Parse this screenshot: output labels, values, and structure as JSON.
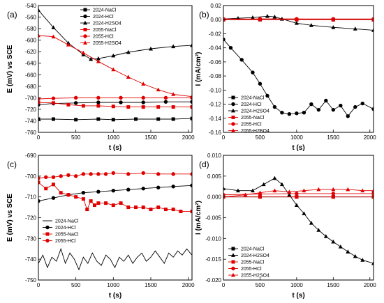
{
  "chart_data": [
    {
      "panel": "(a)",
      "type": "line",
      "xlabel": "t (s)",
      "ylabel": "E (mV) vs SCE",
      "xlim": [
        0,
        2050
      ],
      "ylim": [
        -760,
        -540
      ],
      "xticks": [
        0,
        500,
        1000,
        1500,
        2000
      ],
      "yticks": [
        -540,
        -560,
        -580,
        -600,
        -620,
        -640,
        -660,
        -680,
        -700,
        -720,
        -740,
        -760
      ],
      "legend_position": "top-right",
      "series": [
        {
          "name": "2024-NaCl",
          "color": "#000000",
          "marker": "square",
          "x": [
            0,
            200,
            500,
            800,
            1000,
            1300,
            1600,
            1800,
            2050
          ],
          "y": [
            -737,
            -737,
            -738,
            -737,
            -738,
            -737,
            -737,
            -737,
            -736
          ]
        },
        {
          "name": "2024-HCl",
          "color": "#000000",
          "marker": "circle",
          "x": [
            0,
            200,
            500,
            800,
            1100,
            1400,
            1700,
            2050
          ],
          "y": [
            -712,
            -710,
            -709,
            -708,
            -708,
            -708,
            -707,
            -707
          ]
        },
        {
          "name": "2024-H2SO4",
          "color": "#000000",
          "marker": "triangle",
          "x": [
            0,
            200,
            400,
            600,
            700,
            800,
            1000,
            1200,
            1500,
            1800,
            2050
          ],
          "y": [
            -548,
            -578,
            -605,
            -625,
            -633,
            -632,
            -627,
            -621,
            -615,
            -611,
            -609
          ]
        },
        {
          "name": "2055-NaCl",
          "color": "#e00000",
          "marker": "square",
          "x": [
            0,
            200,
            400,
            600,
            800,
            1000,
            1200,
            1400,
            1600,
            1800,
            2050
          ],
          "y": [
            -708,
            -709,
            -712,
            -714,
            -714,
            -715,
            -716,
            -716,
            -716,
            -716,
            -716
          ]
        },
        {
          "name": "2055-HCl",
          "color": "#e00000",
          "marker": "circle",
          "x": [
            0,
            200,
            500,
            800,
            1100,
            1400,
            1700,
            2050
          ],
          "y": [
            -702,
            -701,
            -700,
            -700,
            -700,
            -700,
            -700,
            -700
          ]
        },
        {
          "name": "2055-H2SO4",
          "color": "#e00000",
          "marker": "triangle",
          "x": [
            0,
            200,
            400,
            600,
            800,
            1000,
            1200,
            1400,
            1600,
            1800,
            2050
          ],
          "y": [
            -592,
            -594,
            -608,
            -622,
            -637,
            -651,
            -664,
            -676,
            -686,
            -694,
            -698
          ]
        }
      ]
    },
    {
      "panel": "(b)",
      "type": "line",
      "xlabel": "t (s)",
      "ylabel": "I (mA/cm²)",
      "xlim": [
        0,
        2050
      ],
      "ylim": [
        -0.16,
        0.02
      ],
      "xticks": [
        0,
        500,
        1000,
        1500,
        2000
      ],
      "yticks": [
        0.02,
        0.0,
        -0.02,
        -0.04,
        -0.06,
        -0.08,
        -0.1,
        -0.12,
        -0.14,
        -0.16
      ],
      "legend_position": "bottom-left",
      "series": [
        {
          "name": "2024-NaCl",
          "color": "#000000",
          "marker": "square",
          "x": [
            0,
            500,
            1000,
            1500,
            2050
          ],
          "y": [
            0.0,
            0.0,
            0.0,
            0.0,
            0.0
          ]
        },
        {
          "name": "2024-HCl",
          "color": "#000000",
          "marker": "circle",
          "x": [
            0,
            100,
            250,
            400,
            500,
            600,
            700,
            800,
            900,
            1000,
            1100,
            1200,
            1300,
            1400,
            1500,
            1600,
            1700,
            1800,
            1900,
            2050
          ],
          "y": [
            -0.028,
            -0.04,
            -0.057,
            -0.075,
            -0.091,
            -0.108,
            -0.124,
            -0.132,
            -0.134,
            -0.133,
            -0.132,
            -0.12,
            -0.128,
            -0.115,
            -0.128,
            -0.122,
            -0.137,
            -0.124,
            -0.119,
            -0.127
          ]
        },
        {
          "name": "2024-H2SO4",
          "color": "#000000",
          "marker": "triangle",
          "x": [
            0,
            200,
            400,
            600,
            700,
            800,
            1000,
            1200,
            1500,
            1800,
            2050
          ],
          "y": [
            0.001,
            0.002,
            0.003,
            0.005,
            0.004,
            0.001,
            -0.005,
            -0.008,
            -0.011,
            -0.013,
            -0.015
          ]
        },
        {
          "name": "2055-NaCl",
          "color": "#e00000",
          "marker": "square",
          "x": [
            0,
            500,
            1000,
            1500,
            2050
          ],
          "y": [
            0.0,
            0.0,
            0.0,
            0.0,
            0.0
          ]
        },
        {
          "name": "2055-HCl",
          "color": "#e00000",
          "marker": "circle",
          "x": [
            0,
            500,
            1000,
            1500,
            2050
          ],
          "y": [
            0.001,
            0.001,
            0.001,
            0.001,
            0.001
          ]
        },
        {
          "name": "2055-H2SO4",
          "color": "#e00000",
          "marker": "triangle",
          "x": [
            0,
            500,
            1000,
            1500,
            2050
          ],
          "y": [
            0.0,
            0.001,
            0.001,
            0.0,
            0.0
          ]
        }
      ]
    },
    {
      "panel": "(c)",
      "type": "line",
      "xlabel": "t (s)",
      "ylabel": "E (mV) vs SCE",
      "xlim": [
        0,
        2050
      ],
      "ylim": [
        -750,
        -690
      ],
      "xticks": [
        0,
        500,
        1000,
        1500,
        2000
      ],
      "yticks": [
        -690,
        -700,
        -710,
        -720,
        -730,
        -740,
        -750
      ],
      "legend_position": "bottom-left",
      "series": [
        {
          "name": "2024-NaCl",
          "color": "#000000",
          "marker": "none",
          "x": [
            0,
            60,
            120,
            180,
            240,
            300,
            360,
            420,
            480,
            540,
            600,
            660,
            720,
            780,
            840,
            900,
            960,
            1020,
            1080,
            1140,
            1200,
            1260,
            1320,
            1380,
            1440,
            1500,
            1560,
            1620,
            1680,
            1740,
            1800,
            1860,
            1920,
            1980,
            2050
          ],
          "y": [
            -742,
            -738,
            -744,
            -739,
            -741,
            -735,
            -742,
            -737,
            -740,
            -745,
            -739,
            -742,
            -737,
            -741,
            -743,
            -738,
            -740,
            -744,
            -739,
            -741,
            -738,
            -742,
            -739,
            -737,
            -741,
            -739,
            -736,
            -739,
            -742,
            -737,
            -739,
            -736,
            -738,
            -735,
            -738
          ]
        },
        {
          "name": "2024-HCl",
          "color": "#000000",
          "marker": "circle",
          "x": [
            0,
            200,
            400,
            600,
            800,
            1000,
            1200,
            1400,
            1600,
            1800,
            2050
          ],
          "y": [
            -712,
            -710.5,
            -709,
            -708,
            -707.5,
            -707,
            -706.5,
            -706,
            -705.5,
            -705,
            -704.5
          ]
        },
        {
          "name": "2055-NaCl",
          "color": "#e00000",
          "marker": "square",
          "x": [
            0,
            100,
            200,
            300,
            400,
            500,
            600,
            650,
            700,
            750,
            800,
            900,
            1000,
            1100,
            1200,
            1300,
            1400,
            1500,
            1600,
            1700,
            1800,
            1900,
            2050
          ],
          "y": [
            -703,
            -706,
            -704,
            -708,
            -709,
            -710,
            -711,
            -716,
            -712,
            -714,
            -713,
            -713,
            -714,
            -713,
            -715,
            -715,
            -715,
            -716,
            -715,
            -716,
            -716,
            -717,
            -717
          ]
        },
        {
          "name": "2055-HCl",
          "color": "#e00000",
          "marker": "circle",
          "x": [
            0,
            100,
            200,
            300,
            400,
            500,
            600,
            700,
            800,
            900,
            1000,
            1200,
            1400,
            1600,
            1800,
            2050
          ],
          "y": [
            -701,
            -700.5,
            -700.5,
            -700,
            -699.5,
            -700,
            -699,
            -699,
            -699,
            -699,
            -698.5,
            -699,
            -698.5,
            -699,
            -699,
            -699
          ]
        }
      ]
    },
    {
      "panel": "(d)",
      "type": "line",
      "xlabel": "t (s)",
      "ylabel": "I (mA/cm²)",
      "xlim": [
        0,
        2050
      ],
      "ylim": [
        -0.02,
        0.01
      ],
      "xticks": [
        0,
        500,
        1000,
        1500,
        2000
      ],
      "yticks": [
        0.01,
        0.005,
        0.0,
        -0.005,
        -0.01,
        -0.015,
        -0.02
      ],
      "legend_position": "bottom-left",
      "series": [
        {
          "name": "2024-NaCl",
          "color": "#000000",
          "marker": "square",
          "x": [
            0,
            500,
            1000,
            1500,
            2050
          ],
          "y": [
            0.0,
            0.0,
            0.0,
            0.0,
            0.0
          ]
        },
        {
          "name": "2024-H2SO4",
          "color": "#000000",
          "marker": "triangle",
          "x": [
            0,
            200,
            400,
            550,
            700,
            800,
            900,
            1000,
            1100,
            1200,
            1300,
            1400,
            1500,
            1600,
            1700,
            1800,
            1900,
            2050
          ],
          "y": [
            0.002,
            0.0015,
            0.0015,
            0.003,
            0.0045,
            0.003,
            0.0005,
            -0.002,
            -0.004,
            -0.0063,
            -0.008,
            -0.0095,
            -0.0108,
            -0.012,
            -0.0132,
            -0.0143,
            -0.0152,
            -0.016
          ]
        },
        {
          "name": "2055-NaCl",
          "color": "#e00000",
          "marker": "square",
          "x": [
            0,
            500,
            1000,
            1500,
            2050
          ],
          "y": [
            0.0,
            0.0,
            0.0,
            0.0,
            0.0
          ]
        },
        {
          "name": "2055-HCl",
          "color": "#e00000",
          "marker": "circle",
          "x": [
            0,
            500,
            1000,
            1500,
            2050
          ],
          "y": [
            0.0005,
            0.0007,
            0.0008,
            0.0008,
            0.0008
          ]
        },
        {
          "name": "2055-H2SO4",
          "color": "#e00000",
          "marker": "triangle",
          "x": [
            0,
            300,
            500,
            700,
            900,
            1100,
            1300,
            1500,
            1700,
            1900,
            2050
          ],
          "y": [
            0.0,
            0.0005,
            0.001,
            0.0015,
            0.0012,
            0.0015,
            0.0018,
            0.0018,
            0.0018,
            0.0015,
            0.0015
          ]
        }
      ]
    }
  ]
}
